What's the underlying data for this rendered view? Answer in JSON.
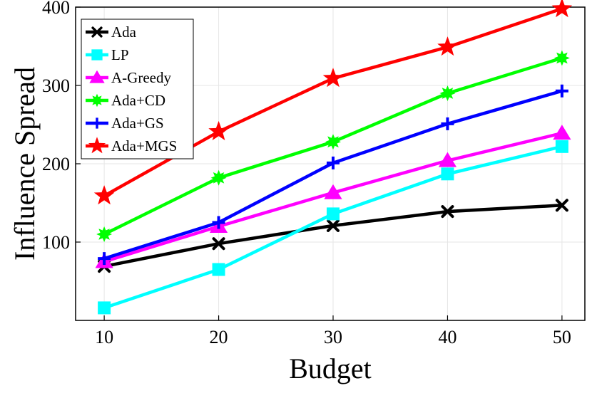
{
  "chart_data": {
    "type": "line",
    "xlabel": "Budget",
    "ylabel": "Influence Spread",
    "x": [
      10,
      20,
      30,
      40,
      50
    ],
    "xlim": [
      7.5,
      52
    ],
    "ylim": [
      0,
      400
    ],
    "xticks": [
      10,
      20,
      30,
      40,
      50
    ],
    "yticks": [
      100,
      200,
      300,
      400
    ],
    "grid": true,
    "legend": "top-left",
    "series": [
      {
        "name": "Ada",
        "color": "#000000",
        "marker": "x",
        "values": [
          69,
          98,
          121,
          139,
          147
        ]
      },
      {
        "name": "LP",
        "color": "#00ffff",
        "marker": "square",
        "values": [
          16,
          65,
          136,
          187,
          222
        ]
      },
      {
        "name": "A-Greedy",
        "color": "#ff00ff",
        "marker": "triangle",
        "values": [
          75,
          120,
          163,
          204,
          239
        ]
      },
      {
        "name": "Ada+CD",
        "color": "#00ff00",
        "marker": "star8",
        "values": [
          110,
          182,
          228,
          290,
          335
        ]
      },
      {
        "name": "Ada+GS",
        "color": "#0000ff",
        "marker": "plus",
        "values": [
          79,
          125,
          201,
          251,
          293
        ]
      },
      {
        "name": "Ada+MGS",
        "color": "#ff0000",
        "marker": "pentagram",
        "values": [
          159,
          241,
          309,
          349,
          398
        ]
      }
    ]
  }
}
